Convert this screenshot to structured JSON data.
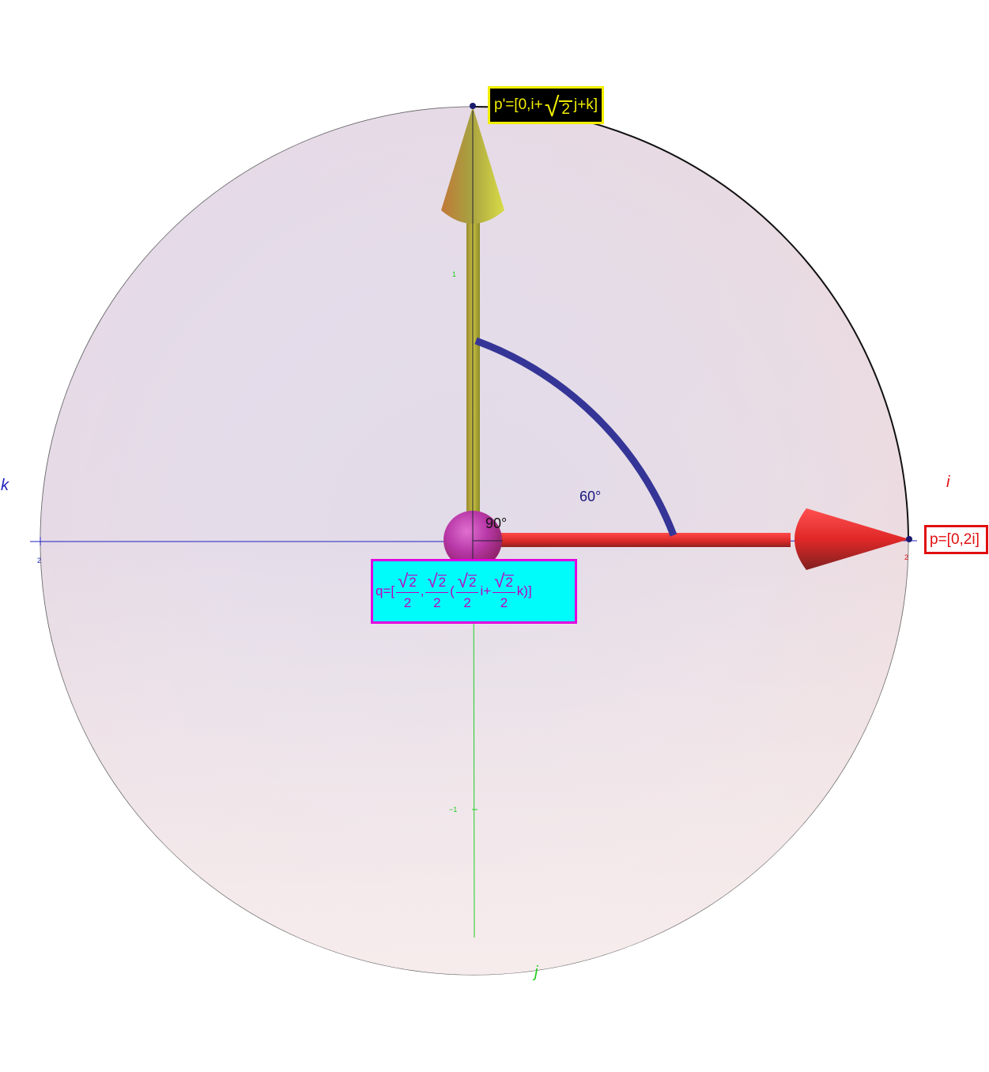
{
  "diagram": {
    "axes": {
      "i": {
        "name": "i",
        "color": "#e01010",
        "tick_value": "2"
      },
      "j": {
        "name": "j",
        "color": "#22cc22",
        "tick_up": "1",
        "tick_down": "−1"
      },
      "k": {
        "name": "k",
        "color": "#2020c0",
        "tick_value": "2"
      }
    },
    "angles": {
      "arc_angle": "60°",
      "right_angle": "90°"
    },
    "labels": {
      "p_prime": {
        "prefix": "p'=[0,i+",
        "radicand": "2",
        "suffix": " j+k]"
      },
      "p": {
        "text": "p=[0,2i]"
      },
      "q": {
        "prefix": "q=[",
        "sep1": ",",
        "paren_open": "(",
        "mid": "i+",
        "end": "k)]",
        "numerator_radicand": "2",
        "denominator": "2"
      }
    },
    "colors": {
      "p_prime_arrow": "#b8b838",
      "p_arrow": "#e03030",
      "arc": "#353597",
      "origin_sphere": "#b040b0",
      "disk_fill": "#e8dde8"
    }
  }
}
